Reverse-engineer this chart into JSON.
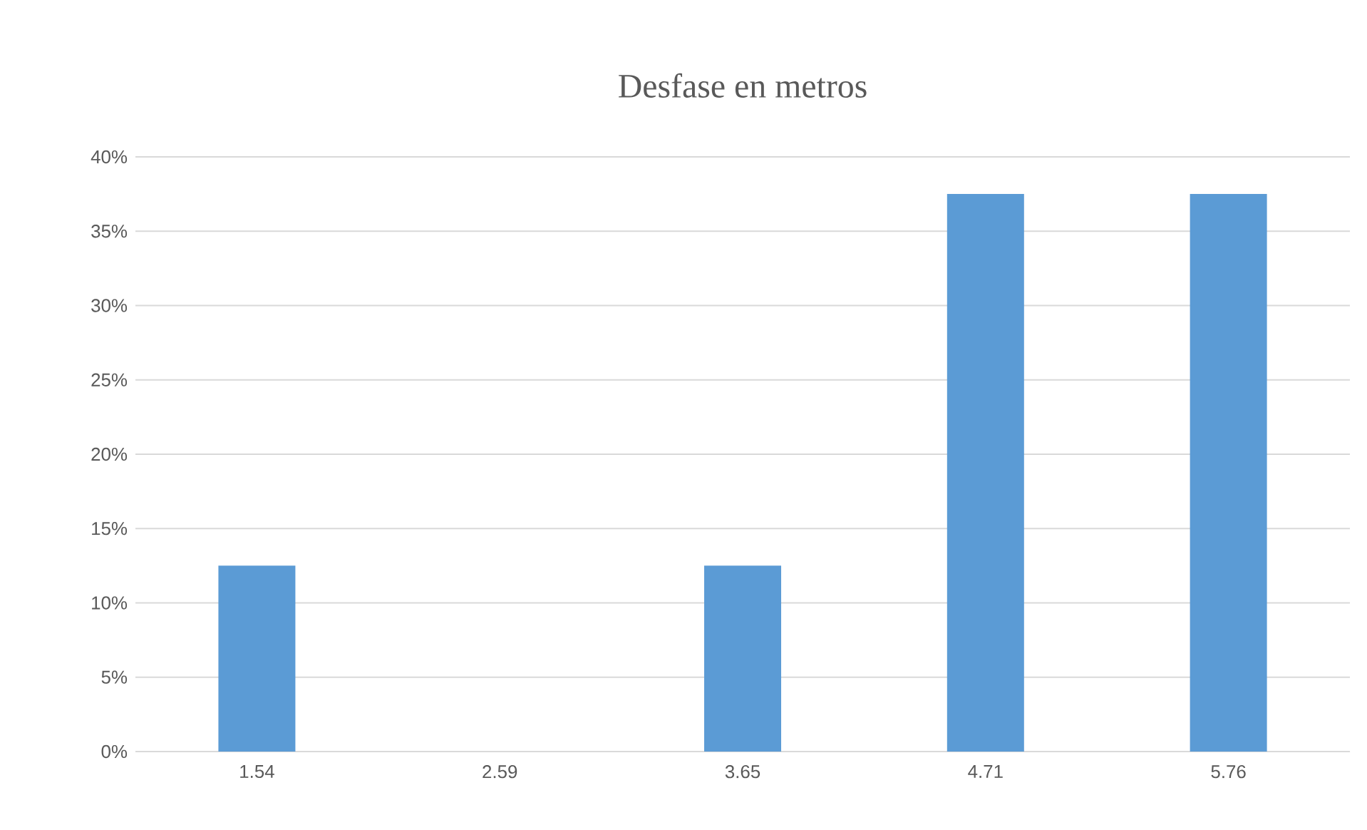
{
  "chart_data": {
    "type": "bar",
    "title": "Desfase en metros",
    "categories": [
      "1.54",
      "2.59",
      "3.65",
      "4.71",
      "5.76"
    ],
    "values": [
      12.5,
      0,
      12.5,
      37.5,
      37.5
    ],
    "color": "#5b9bd5",
    "ylim": [
      0,
      40
    ],
    "yticks": [
      {
        "value": 0,
        "label": "0%"
      },
      {
        "value": 5,
        "label": "5%"
      },
      {
        "value": 10,
        "label": "10%"
      },
      {
        "value": 15,
        "label": "15%"
      },
      {
        "value": 20,
        "label": "20%"
      },
      {
        "value": 25,
        "label": "25%"
      },
      {
        "value": 30,
        "label": "30%"
      },
      {
        "value": 35,
        "label": "35%"
      },
      {
        "value": 40,
        "label": "40%"
      }
    ],
    "grid": "y"
  }
}
